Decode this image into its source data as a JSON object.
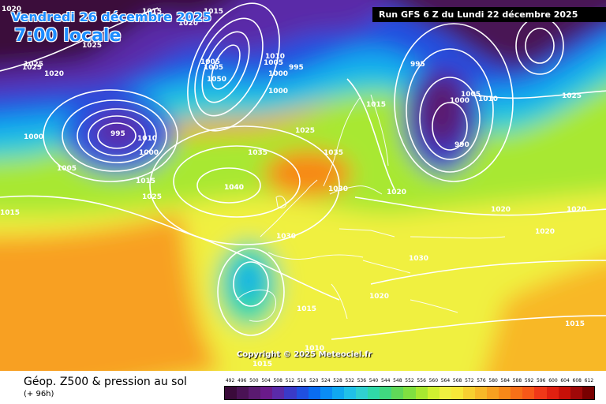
{
  "header": {
    "date": "Vendredi 26 décembre 2025",
    "time": "7:00 locale",
    "run_info": "Run GFS 6 Z du Lundi 22 décembre 2025"
  },
  "footer": {
    "product": "Géop. Z500 & pression au sol",
    "lead_time": "(+ 96h)",
    "copyright": "Copyright © 2025 Meteociel.fr"
  },
  "legend": {
    "values": [
      "492",
      "496",
      "500",
      "504",
      "508",
      "512",
      "516",
      "520",
      "524",
      "528",
      "532",
      "536",
      "540",
      "544",
      "548",
      "552",
      "556",
      "560",
      "564",
      "568",
      "572",
      "576",
      "580",
      "584",
      "588",
      "592",
      "596",
      "600",
      "604",
      "608",
      "612"
    ],
    "colors": [
      "#3a0a3a",
      "#4a1255",
      "#5a1a70",
      "#6a1a8a",
      "#5a2aa8",
      "#3a3ac8",
      "#2050e0",
      "#0a6cf0",
      "#0a8cf5",
      "#10a8f0",
      "#20c0e8",
      "#30d0d0",
      "#30d8a8",
      "#40d880",
      "#60d858",
      "#80e040",
      "#a8e830",
      "#d0f030",
      "#f0f040",
      "#f8e838",
      "#f8d030",
      "#f8b828",
      "#f8a020",
      "#f88818",
      "#f87018",
      "#f85818",
      "#f03818",
      "#e02010",
      "#c81008",
      "#a00808",
      "#780000"
    ]
  },
  "pressure_labels": [
    "1020",
    "1015",
    "1015",
    "1020",
    "1025",
    "1020",
    "1025",
    "995",
    "1010",
    "1005",
    "1050",
    "1000",
    "1005",
    "1000",
    "1005",
    "995",
    "1000",
    "1015",
    "1005",
    "1025",
    "1010",
    "1000",
    "995",
    "990",
    "1000",
    "1005",
    "1010",
    "1025",
    "1035",
    "1035",
    "1025",
    "1030",
    "1040",
    "1040",
    "1025",
    "1020",
    "1015",
    "1020",
    "1020",
    "1030",
    "1030",
    "1020",
    "1020",
    "1015",
    "1015",
    "1015",
    "1015",
    "1010"
  ]
}
